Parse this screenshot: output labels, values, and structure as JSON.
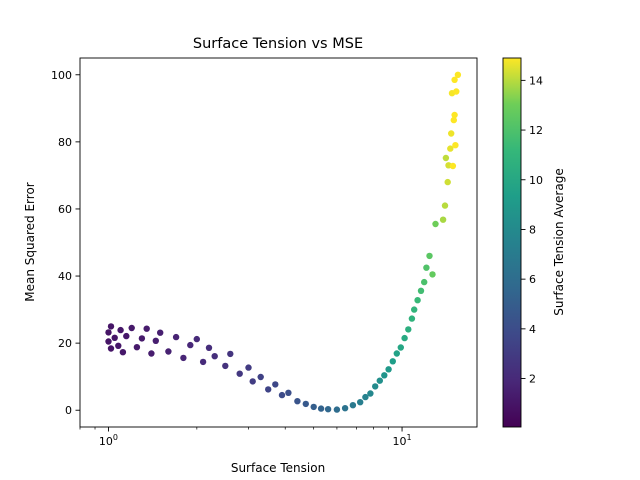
{
  "chart_data": {
    "type": "scatter",
    "title": "Surface Tension vs MSE",
    "xlabel": "Surface Tension",
    "ylabel": "Mean Squared Error",
    "x_scale": "log",
    "xlim": [
      0.8,
      18
    ],
    "ylim": [
      -5,
      105
    ],
    "x_ticks": [
      {
        "value": 1,
        "label": "10",
        "exp": "0"
      },
      {
        "value": 10,
        "label": "10",
        "exp": "1"
      }
    ],
    "y_ticks": [
      0,
      20,
      40,
      60,
      80,
      100
    ],
    "grid": false,
    "colorbar": {
      "label": "Surface Tension Average",
      "colormap": "viridis",
      "range": [
        0.05,
        14.9
      ],
      "ticks": [
        2,
        4,
        6,
        8,
        10,
        12,
        14
      ]
    },
    "points": [
      {
        "x": 1.0,
        "y": 20.5
      },
      {
        "x": 1.0,
        "y": 23.2
      },
      {
        "x": 1.02,
        "y": 18.4
      },
      {
        "x": 1.02,
        "y": 25.0
      },
      {
        "x": 1.05,
        "y": 21.6
      },
      {
        "x": 1.08,
        "y": 19.2
      },
      {
        "x": 1.1,
        "y": 23.9
      },
      {
        "x": 1.12,
        "y": 17.3
      },
      {
        "x": 1.15,
        "y": 22.1
      },
      {
        "x": 1.2,
        "y": 24.5
      },
      {
        "x": 1.25,
        "y": 18.8
      },
      {
        "x": 1.3,
        "y": 21.4
      },
      {
        "x": 1.35,
        "y": 24.3
      },
      {
        "x": 1.4,
        "y": 16.9
      },
      {
        "x": 1.45,
        "y": 20.7
      },
      {
        "x": 1.5,
        "y": 23.1
      },
      {
        "x": 1.6,
        "y": 17.5
      },
      {
        "x": 1.7,
        "y": 21.8
      },
      {
        "x": 1.8,
        "y": 15.6
      },
      {
        "x": 1.9,
        "y": 19.4
      },
      {
        "x": 2.0,
        "y": 21.2
      },
      {
        "x": 2.1,
        "y": 14.4
      },
      {
        "x": 2.2,
        "y": 18.6
      },
      {
        "x": 2.3,
        "y": 16.1
      },
      {
        "x": 2.5,
        "y": 13.2
      },
      {
        "x": 2.6,
        "y": 16.8
      },
      {
        "x": 2.8,
        "y": 10.9
      },
      {
        "x": 3.0,
        "y": 12.7
      },
      {
        "x": 3.1,
        "y": 8.6
      },
      {
        "x": 3.3,
        "y": 9.9
      },
      {
        "x": 3.5,
        "y": 6.2
      },
      {
        "x": 3.7,
        "y": 7.7
      },
      {
        "x": 3.9,
        "y": 4.5
      },
      {
        "x": 4.1,
        "y": 5.2
      },
      {
        "x": 4.4,
        "y": 2.7
      },
      {
        "x": 4.7,
        "y": 1.9
      },
      {
        "x": 5.0,
        "y": 1.0
      },
      {
        "x": 5.3,
        "y": 0.5
      },
      {
        "x": 5.6,
        "y": 0.3
      },
      {
        "x": 6.0,
        "y": 0.2
      },
      {
        "x": 6.4,
        "y": 0.6
      },
      {
        "x": 6.8,
        "y": 1.5
      },
      {
        "x": 7.2,
        "y": 2.4
      },
      {
        "x": 7.5,
        "y": 3.9
      },
      {
        "x": 7.8,
        "y": 5.0
      },
      {
        "x": 8.1,
        "y": 7.1
      },
      {
        "x": 8.4,
        "y": 8.8
      },
      {
        "x": 8.7,
        "y": 10.4
      },
      {
        "x": 9.0,
        "y": 12.2
      },
      {
        "x": 9.3,
        "y": 14.6
      },
      {
        "x": 9.6,
        "y": 16.9
      },
      {
        "x": 9.9,
        "y": 18.7
      },
      {
        "x": 10.2,
        "y": 21.5
      },
      {
        "x": 10.5,
        "y": 24.1
      },
      {
        "x": 10.8,
        "y": 27.3
      },
      {
        "x": 11.0,
        "y": 30.0
      },
      {
        "x": 11.3,
        "y": 32.8
      },
      {
        "x": 11.6,
        "y": 35.6
      },
      {
        "x": 11.9,
        "y": 38.2
      },
      {
        "x": 12.1,
        "y": 42.5
      },
      {
        "x": 12.4,
        "y": 46.0
      },
      {
        "x": 12.7,
        "y": 40.5
      },
      {
        "x": 13.0,
        "y": 55.5
      },
      {
        "x": 13.8,
        "y": 56.8
      },
      {
        "x": 14.0,
        "y": 61.0
      },
      {
        "x": 14.3,
        "y": 68.0
      },
      {
        "x": 14.4,
        "y": 73.0
      },
      {
        "x": 14.1,
        "y": 75.2
      },
      {
        "x": 14.6,
        "y": 78.0
      },
      {
        "x": 14.9,
        "y": 72.8
      },
      {
        "x": 14.7,
        "y": 82.5
      },
      {
        "x": 15.0,
        "y": 86.5
      },
      {
        "x": 15.1,
        "y": 88.0
      },
      {
        "x": 15.2,
        "y": 79.0
      },
      {
        "x": 14.8,
        "y": 94.5
      },
      {
        "x": 15.3,
        "y": 95.0
      },
      {
        "x": 15.1,
        "y": 98.5
      },
      {
        "x": 15.5,
        "y": 100.0
      }
    ]
  }
}
